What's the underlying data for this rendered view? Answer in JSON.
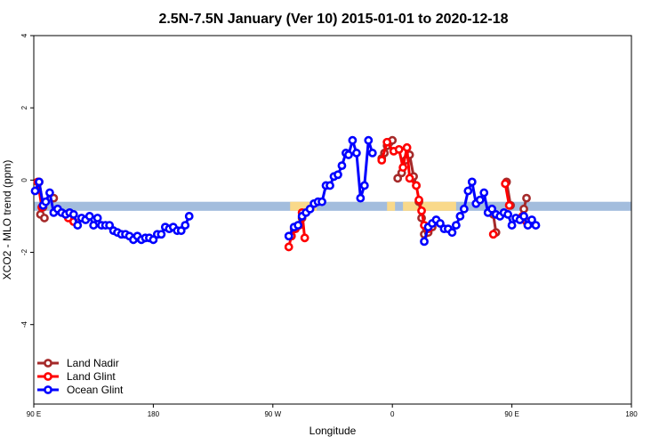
{
  "chart_data": {
    "type": "line",
    "title": "2.5N-7.5N January (Ver 10)   2015-01-01 to 2020-12-18",
    "xlabel": "Longitude",
    "ylabel": "XCO2 - MLO trend (ppm)",
    "x_ticks": [
      {
        "value": 90,
        "label": "90 E"
      },
      {
        "value": 180,
        "label": "180"
      },
      {
        "value": 270,
        "label": "90 W"
      },
      {
        "value": 360,
        "label": "0"
      },
      {
        "value": 450,
        "label": "90 E"
      },
      {
        "value": 540,
        "label": "180"
      }
    ],
    "y_ticks": [
      {
        "value": 4,
        "label": "4"
      },
      {
        "value": 2,
        "label": "2"
      },
      {
        "value": 0,
        "label": "0"
      },
      {
        "value": -2,
        "label": "-2"
      },
      {
        "value": -4,
        "label": "-4"
      }
    ],
    "xlim": [
      90,
      540
    ],
    "ylim": [
      -6.2,
      4
    ],
    "colors": {
      "band": "#a3bddd",
      "band_highlight": "#f9d98a",
      "land_nadir": "#a52a2a",
      "land_glint": "#ff0000",
      "ocean_glint": "#0000ff"
    },
    "band": {
      "y_low": -0.85,
      "y_high": -0.6
    },
    "band_highlights": [
      {
        "x_start": 283,
        "x_end": 303
      },
      {
        "x_start": 356,
        "x_end": 362
      },
      {
        "x_start": 368,
        "x_end": 408
      }
    ],
    "legend_position": "bottom-left",
    "series": [
      {
        "name": "Land Nadir",
        "color": "#a52a2a",
        "segments": [
          [
            [
              94,
              -0.05
            ],
            [
              97,
              -0.75
            ]
          ],
          [
            [
              95,
              -0.95
            ],
            [
              98,
              -1.05
            ]
          ],
          [
            [
              105,
              -0.5
            ]
          ],
          [
            [
              284,
              -1.55
            ],
            [
              286,
              -1.35
            ],
            [
              289,
              -1.25
            ],
            [
              292,
              -1.05
            ]
          ],
          [
            [
              352,
              0.6
            ],
            [
              354,
              0.75
            ],
            [
              356,
              0.95
            ],
            [
              358,
              1.05
            ],
            [
              360,
              1.1
            ]
          ],
          [
            [
              364,
              0.05
            ],
            [
              367,
              0.2
            ],
            [
              370,
              0.55
            ],
            [
              373,
              0.7
            ],
            [
              376,
              0.1
            ],
            [
              378,
              -0.15
            ]
          ],
          [
            [
              380,
              -0.6
            ],
            [
              382,
              -1.05
            ],
            [
              384,
              -1.5
            ],
            [
              387,
              -1.45
            ],
            [
              390,
              -1.3
            ]
          ],
          [
            [
              436,
              -0.95
            ],
            [
              438,
              -1.45
            ]
          ],
          [
            [
              446,
              -0.05
            ],
            [
              449,
              -0.7
            ]
          ],
          [
            [
              459,
              -0.8
            ],
            [
              461,
              -0.5
            ]
          ]
        ]
      },
      {
        "name": "Land Glint",
        "color": "#ff0000",
        "segments": [
          [
            [
              93,
              -0.05
            ],
            [
              96,
              -0.75
            ]
          ],
          [
            [
              116,
              -1.05
            ],
            [
              120,
              -1.15
            ]
          ],
          [
            [
              282,
              -1.85
            ],
            [
              284,
              -1.55
            ],
            [
              287,
              -1.35
            ],
            [
              290,
              -1.25
            ],
            [
              292,
              -0.9
            ],
            [
              294,
              -1.6
            ]
          ],
          [
            [
              352,
              0.55
            ],
            [
              356,
              1.05
            ],
            [
              361,
              0.8
            ],
            [
              365,
              0.85
            ],
            [
              368,
              0.35
            ],
            [
              371,
              0.9
            ],
            [
              373,
              0.05
            ],
            [
              378,
              -0.15
            ],
            [
              380,
              -0.55
            ],
            [
              382,
              -0.85
            ],
            [
              384,
              -1.25
            ],
            [
              387,
              -1.35
            ]
          ],
          [
            [
              436,
              -1.5
            ]
          ],
          [
            [
              445,
              -0.1
            ],
            [
              448,
              -0.7
            ]
          ],
          [
            [
              458,
              -1.0
            ],
            [
              461,
              -1.15
            ]
          ]
        ]
      },
      {
        "name": "Ocean Glint",
        "color": "#0000ff",
        "segments": [
          [
            [
              91,
              -0.3
            ],
            [
              94,
              -0.05
            ],
            [
              97,
              -0.7
            ],
            [
              99,
              -0.6
            ],
            [
              102,
              -0.35
            ],
            [
              105,
              -0.9
            ],
            [
              108,
              -0.8
            ],
            [
              111,
              -0.9
            ],
            [
              114,
              -0.95
            ],
            [
              117,
              -0.9
            ],
            [
              120,
              -0.95
            ],
            [
              123,
              -1.25
            ],
            [
              126,
              -1.05
            ],
            [
              129,
              -1.1
            ],
            [
              132,
              -1.0
            ],
            [
              135,
              -1.25
            ],
            [
              138,
              -1.05
            ],
            [
              141,
              -1.25
            ],
            [
              144,
              -1.25
            ],
            [
              147,
              -1.25
            ],
            [
              150,
              -1.4
            ],
            [
              153,
              -1.45
            ],
            [
              156,
              -1.5
            ],
            [
              159,
              -1.5
            ],
            [
              162,
              -1.55
            ],
            [
              165,
              -1.65
            ],
            [
              168,
              -1.55
            ],
            [
              171,
              -1.65
            ],
            [
              174,
              -1.6
            ],
            [
              177,
              -1.6
            ],
            [
              180,
              -1.65
            ],
            [
              183,
              -1.5
            ],
            [
              186,
              -1.5
            ],
            [
              189,
              -1.3
            ],
            [
              192,
              -1.35
            ],
            [
              195,
              -1.3
            ],
            [
              198,
              -1.4
            ],
            [
              201,
              -1.4
            ],
            [
              204,
              -1.25
            ],
            [
              207,
              -1.0
            ]
          ],
          [
            [
              282,
              -1.55
            ],
            [
              286,
              -1.3
            ],
            [
              289,
              -1.25
            ],
            [
              292,
              -1.0
            ],
            [
              295,
              -0.9
            ],
            [
              298,
              -0.8
            ],
            [
              301,
              -0.65
            ],
            [
              304,
              -0.6
            ],
            [
              307,
              -0.6
            ],
            [
              310,
              -0.15
            ],
            [
              313,
              -0.15
            ],
            [
              316,
              0.1
            ],
            [
              319,
              0.15
            ],
            [
              322,
              0.4
            ],
            [
              325,
              0.75
            ],
            [
              327,
              0.7
            ],
            [
              330,
              1.1
            ],
            [
              333,
              0.75
            ],
            [
              336,
              -0.5
            ],
            [
              339,
              -0.15
            ],
            [
              342,
              1.1
            ],
            [
              345,
              0.75
            ]
          ],
          [
            [
              384,
              -1.7
            ],
            [
              387,
              -1.3
            ],
            [
              390,
              -1.2
            ],
            [
              393,
              -1.1
            ],
            [
              396,
              -1.2
            ],
            [
              399,
              -1.35
            ],
            [
              402,
              -1.35
            ],
            [
              405,
              -1.45
            ],
            [
              408,
              -1.25
            ],
            [
              411,
              -1.0
            ],
            [
              414,
              -0.8
            ],
            [
              417,
              -0.3
            ],
            [
              420,
              -0.05
            ],
            [
              423,
              -0.65
            ],
            [
              426,
              -0.55
            ],
            [
              429,
              -0.35
            ],
            [
              432,
              -0.9
            ],
            [
              435,
              -0.8
            ],
            [
              438,
              -0.95
            ],
            [
              441,
              -1.0
            ],
            [
              444,
              -0.9
            ],
            [
              447,
              -0.95
            ],
            [
              450,
              -1.25
            ],
            [
              453,
              -1.05
            ],
            [
              456,
              -1.1
            ],
            [
              459,
              -1.0
            ],
            [
              462,
              -1.25
            ],
            [
              465,
              -1.1
            ],
            [
              468,
              -1.25
            ]
          ]
        ]
      }
    ]
  }
}
